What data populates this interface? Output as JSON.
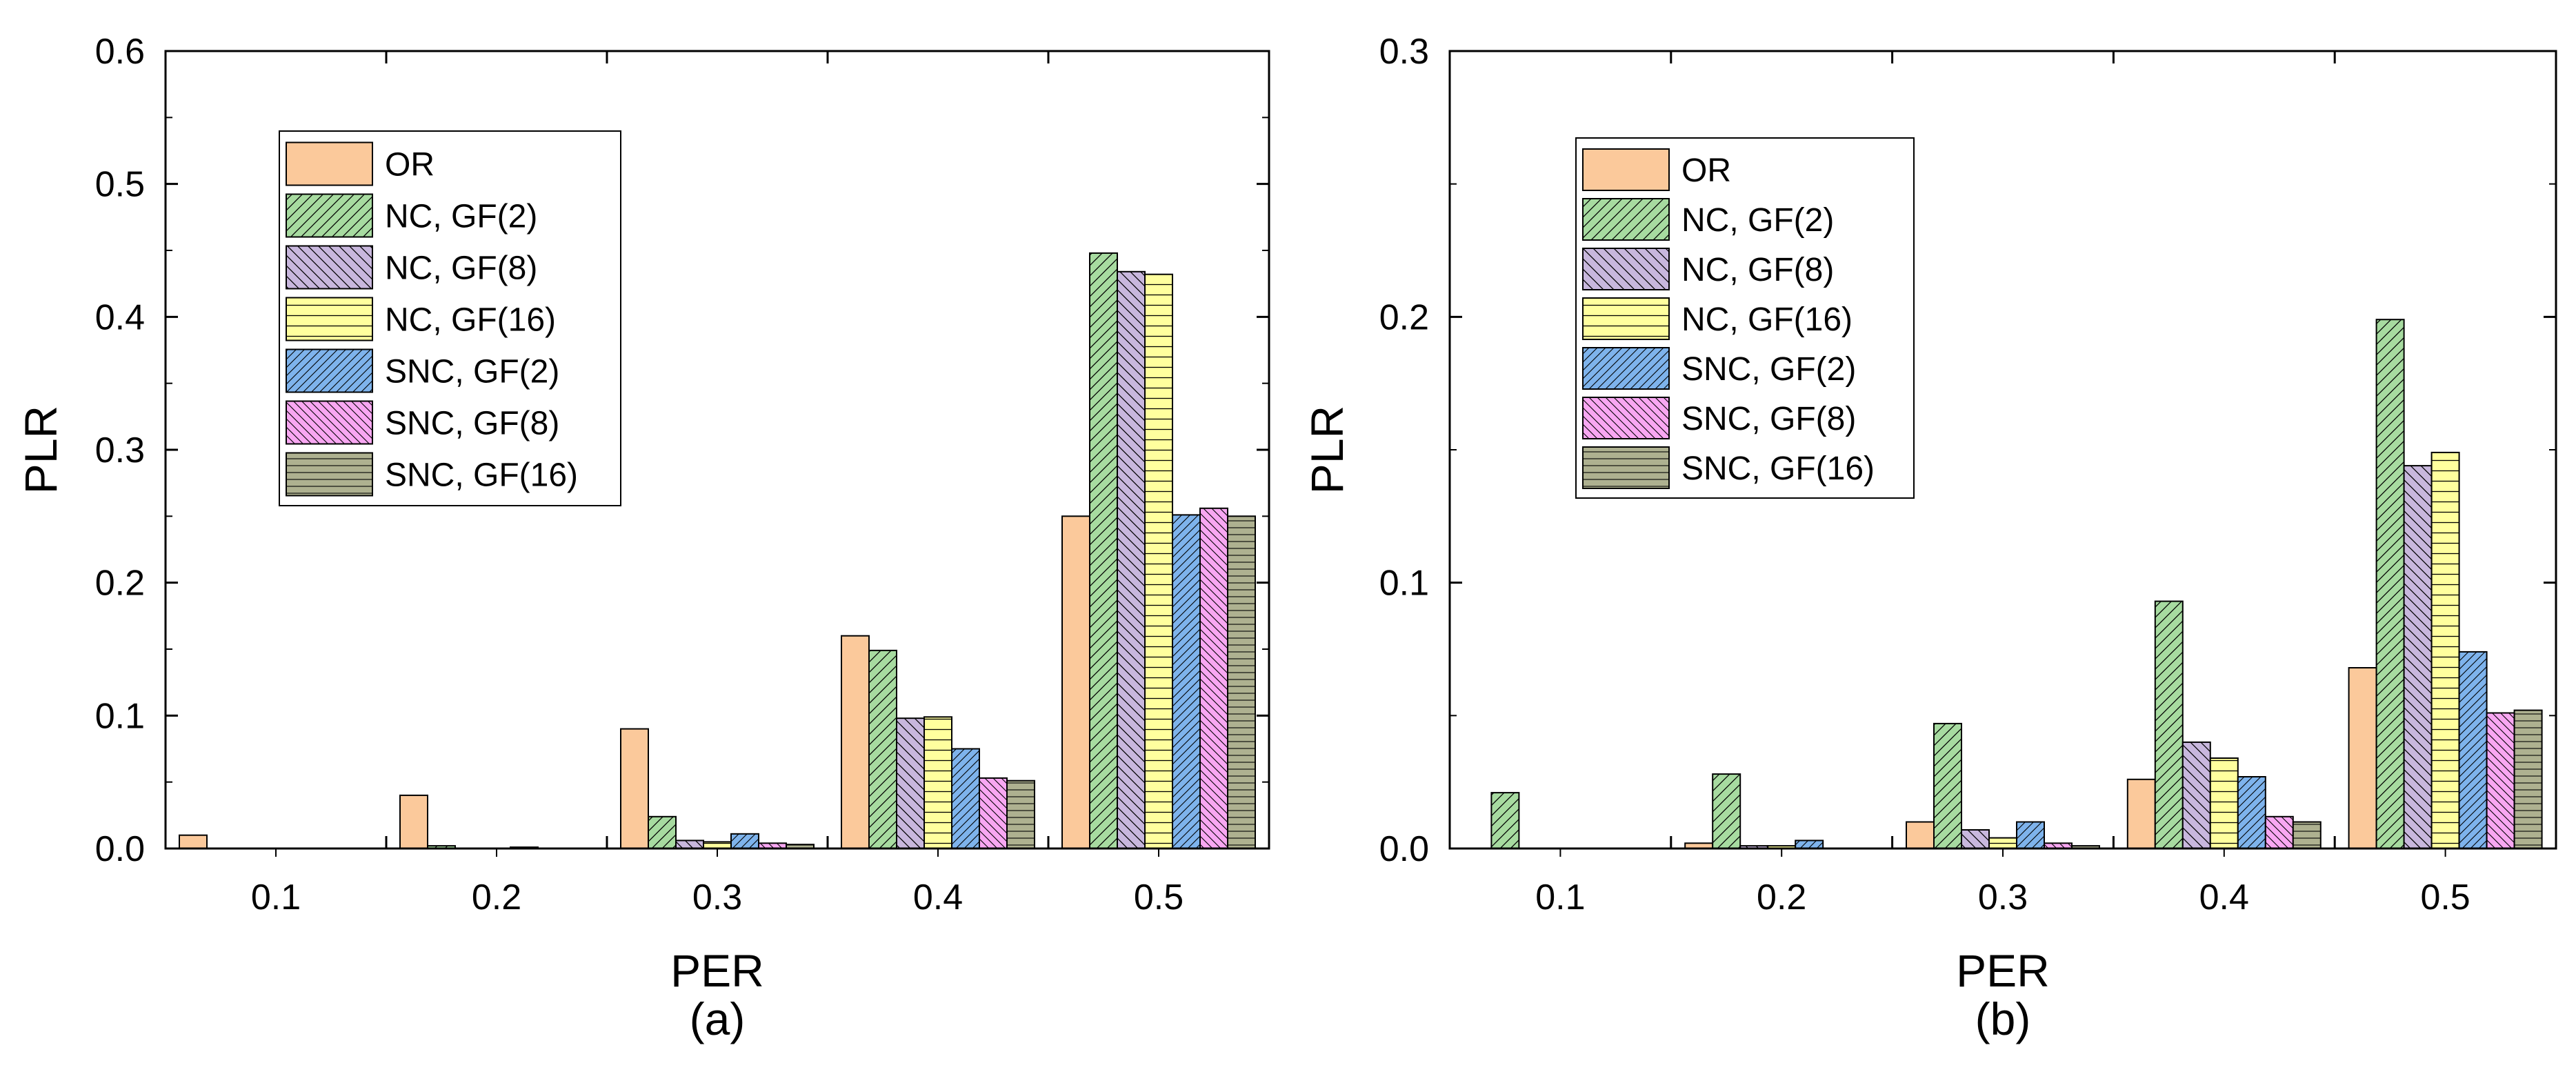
{
  "colors": {
    "OR": "#fbc99b",
    "NC, GF(2)": "#a7dba0",
    "NC, GF(8)": "#c8b7dd",
    "NC, GF(16)": "#ffff9e",
    "SNC, GF(2)": "#7eb3ec",
    "SNC, GF(8)": "#f8a7f2",
    "SNC, GF(16)": "#aeb190"
  },
  "chart_data": [
    {
      "type": "bar",
      "panel_label": "(a)",
      "xlabel": "PER",
      "ylabel": "PLR",
      "categories": [
        "0.1",
        "0.2",
        "0.3",
        "0.4",
        "0.5"
      ],
      "ylim": [
        0,
        0.6
      ],
      "yticks": [
        "0.0",
        "0.1",
        "0.2",
        "0.3",
        "0.4",
        "0.5",
        "0.6"
      ],
      "grid": false,
      "legend_position": "top-left",
      "series": [
        {
          "name": "OR",
          "values": [
            0.01,
            0.04,
            0.09,
            0.16,
            0.25
          ]
        },
        {
          "name": "NC, GF(2)",
          "values": [
            0.0,
            0.002,
            0.024,
            0.149,
            0.448
          ]
        },
        {
          "name": "NC, GF(8)",
          "values": [
            0.0,
            0.0,
            0.006,
            0.098,
            0.434
          ]
        },
        {
          "name": "NC, GF(16)",
          "values": [
            0.0,
            0.0,
            0.005,
            0.099,
            0.432
          ]
        },
        {
          "name": "SNC, GF(2)",
          "values": [
            0.0,
            0.001,
            0.011,
            0.075,
            0.251
          ]
        },
        {
          "name": "SNC, GF(8)",
          "values": [
            0.0,
            0.0,
            0.004,
            0.053,
            0.256
          ]
        },
        {
          "name": "SNC, GF(16)",
          "values": [
            0.0,
            0.0,
            0.003,
            0.051,
            0.25
          ]
        }
      ]
    },
    {
      "type": "bar",
      "panel_label": "(b)",
      "xlabel": "PER",
      "ylabel": "PLR",
      "categories": [
        "0.1",
        "0.2",
        "0.3",
        "0.4",
        "0.5"
      ],
      "ylim": [
        0,
        0.3
      ],
      "yticks": [
        "0.0",
        "0.1",
        "0.2",
        "0.3"
      ],
      "grid": false,
      "legend_position": "top-left",
      "series": [
        {
          "name": "OR",
          "values": [
            0.0,
            0.002,
            0.01,
            0.026,
            0.068
          ]
        },
        {
          "name": "NC, GF(2)",
          "values": [
            0.021,
            0.028,
            0.047,
            0.093,
            0.199
          ]
        },
        {
          "name": "NC, GF(8)",
          "values": [
            0.0,
            0.001,
            0.007,
            0.04,
            0.144
          ]
        },
        {
          "name": "NC, GF(16)",
          "values": [
            0.0,
            0.001,
            0.004,
            0.034,
            0.149
          ]
        },
        {
          "name": "SNC, GF(2)",
          "values": [
            0.0,
            0.003,
            0.01,
            0.027,
            0.074
          ]
        },
        {
          "name": "SNC, GF(8)",
          "values": [
            0.0,
            0.0,
            0.002,
            0.012,
            0.051
          ]
        },
        {
          "name": "SNC, GF(16)",
          "values": [
            0.0,
            0.0,
            0.001,
            0.01,
            0.052
          ]
        }
      ]
    }
  ]
}
